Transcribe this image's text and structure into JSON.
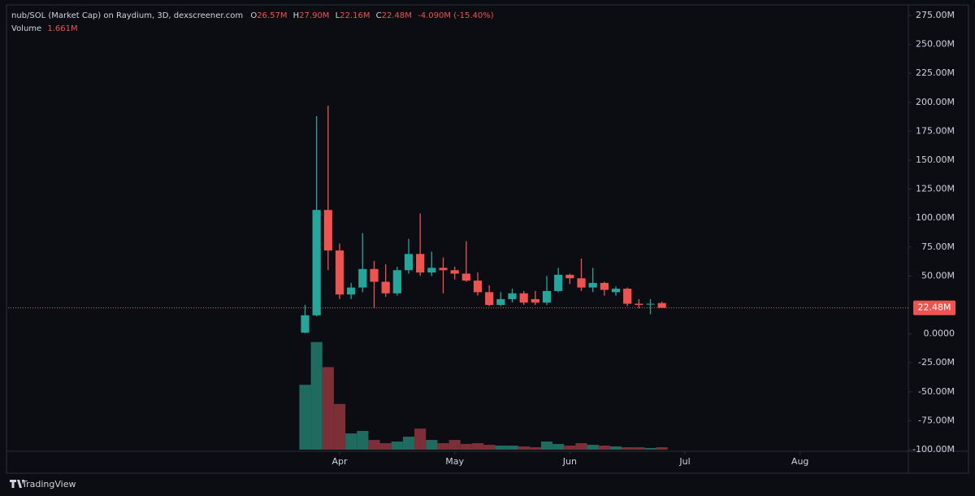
{
  "header": {
    "title": "nub/SOL (Market Cap) on Raydium, 3D, dexscreener.com",
    "open_label": "O",
    "open": "26.57M",
    "high_label": "H",
    "high": "27.90M",
    "low_label": "L",
    "low": "22.16M",
    "close_label": "C",
    "close": "22.48M",
    "change": "-4.090M (-15.40%)",
    "volume_label": "Volume",
    "volume": "1.661M"
  },
  "brand": "TradingView",
  "chart_data": {
    "type": "candlestick",
    "open": [
      1000000,
      16000000,
      107000000,
      72000000,
      34000000,
      40000000,
      56000000,
      45000000,
      35000000,
      55000000,
      69000000,
      53000000,
      57000000,
      55000000,
      52000000,
      46000000,
      36000000,
      25000000,
      30000000,
      35000000,
      30000000,
      27000000,
      37000000,
      51000000,
      48000000,
      40000000,
      44000000,
      36000000,
      39000000,
      26000000,
      26000000,
      26570000
    ],
    "high": [
      25000000,
      188000000,
      197000000,
      78000000,
      44000000,
      87000000,
      63000000,
      60000000,
      58000000,
      82000000,
      104000000,
      71000000,
      66000000,
      58000000,
      80000000,
      53000000,
      42000000,
      36000000,
      39000000,
      37000000,
      37000000,
      50000000,
      57000000,
      52000000,
      65000000,
      57000000,
      45000000,
      41000000,
      40000000,
      30000000,
      30000000,
      27900000
    ],
    "low": [
      500000,
      15000000,
      55000000,
      30000000,
      30000000,
      36000000,
      22000000,
      32000000,
      33000000,
      52000000,
      50000000,
      50000000,
      35000000,
      47000000,
      45000000,
      33000000,
      24000000,
      24000000,
      27000000,
      25000000,
      25000000,
      25000000,
      36000000,
      43000000,
      37000000,
      36000000,
      33000000,
      33000000,
      24000000,
      22000000,
      17000000,
      22160000
    ],
    "close": [
      16000000,
      107000000,
      72000000,
      34000000,
      40000000,
      56000000,
      45000000,
      35000000,
      55000000,
      69000000,
      53000000,
      57000000,
      55000000,
      52000000,
      46000000,
      36000000,
      25000000,
      30000000,
      35000000,
      27000000,
      27000000,
      37000000,
      51000000,
      48000000,
      40000000,
      44000000,
      38000000,
      39000000,
      26000000,
      25000000,
      26000000,
      22480000
    ],
    "volume": [
      44000000,
      73000000,
      56000000,
      31000000,
      11000000,
      12700000,
      6600000,
      4400000,
      5500000,
      8800000,
      14300000,
      6600000,
      4400000,
      6600000,
      3900000,
      4400000,
      3300000,
      2750000,
      2750000,
      2200000,
      1650000,
      5500000,
      3850000,
      2750000,
      4400000,
      3300000,
      2750000,
      2200000,
      1650000,
      1650000,
      1100000,
      1661000
    ],
    "up_color": "#26a69a",
    "down_color": "#ef5350",
    "volume_up_color": "#1f6b60",
    "volume_down_color": "#7d2f38",
    "volume_lim": [
      0,
      80000000
    ],
    "xlim": [
      -25.8,
      52.2
    ],
    "xticks": [
      {
        "value": 3,
        "label": "Apr"
      },
      {
        "value": 13,
        "label": "May"
      },
      {
        "value": 23,
        "label": "Jun"
      },
      {
        "value": 33,
        "label": "Jul"
      },
      {
        "value": 43,
        "label": "Aug"
      }
    ],
    "ylim": [
      -100000000,
      282000000
    ],
    "yticks": [
      {
        "value": 275000000,
        "label": "275.00M"
      },
      {
        "value": 250000000,
        "label": "250.00M"
      },
      {
        "value": 225000000,
        "label": "225.00M"
      },
      {
        "value": 200000000,
        "label": "200.00M"
      },
      {
        "value": 175000000,
        "label": "175.00M"
      },
      {
        "value": 150000000,
        "label": "150.00M"
      },
      {
        "value": 125000000,
        "label": "125.00M"
      },
      {
        "value": 100000000,
        "label": "100.00M"
      },
      {
        "value": 75000000,
        "label": "75.00M"
      },
      {
        "value": 50000000,
        "label": "50.00M"
      },
      {
        "value": 0,
        "label": "0.0000"
      },
      {
        "value": -25000000,
        "label": "-25.00M"
      },
      {
        "value": -50000000,
        "label": "-50.00M"
      },
      {
        "value": -75000000,
        "label": "-75.00M"
      },
      {
        "value": -100000000,
        "label": "-100.00M"
      }
    ],
    "price_line": true
  }
}
